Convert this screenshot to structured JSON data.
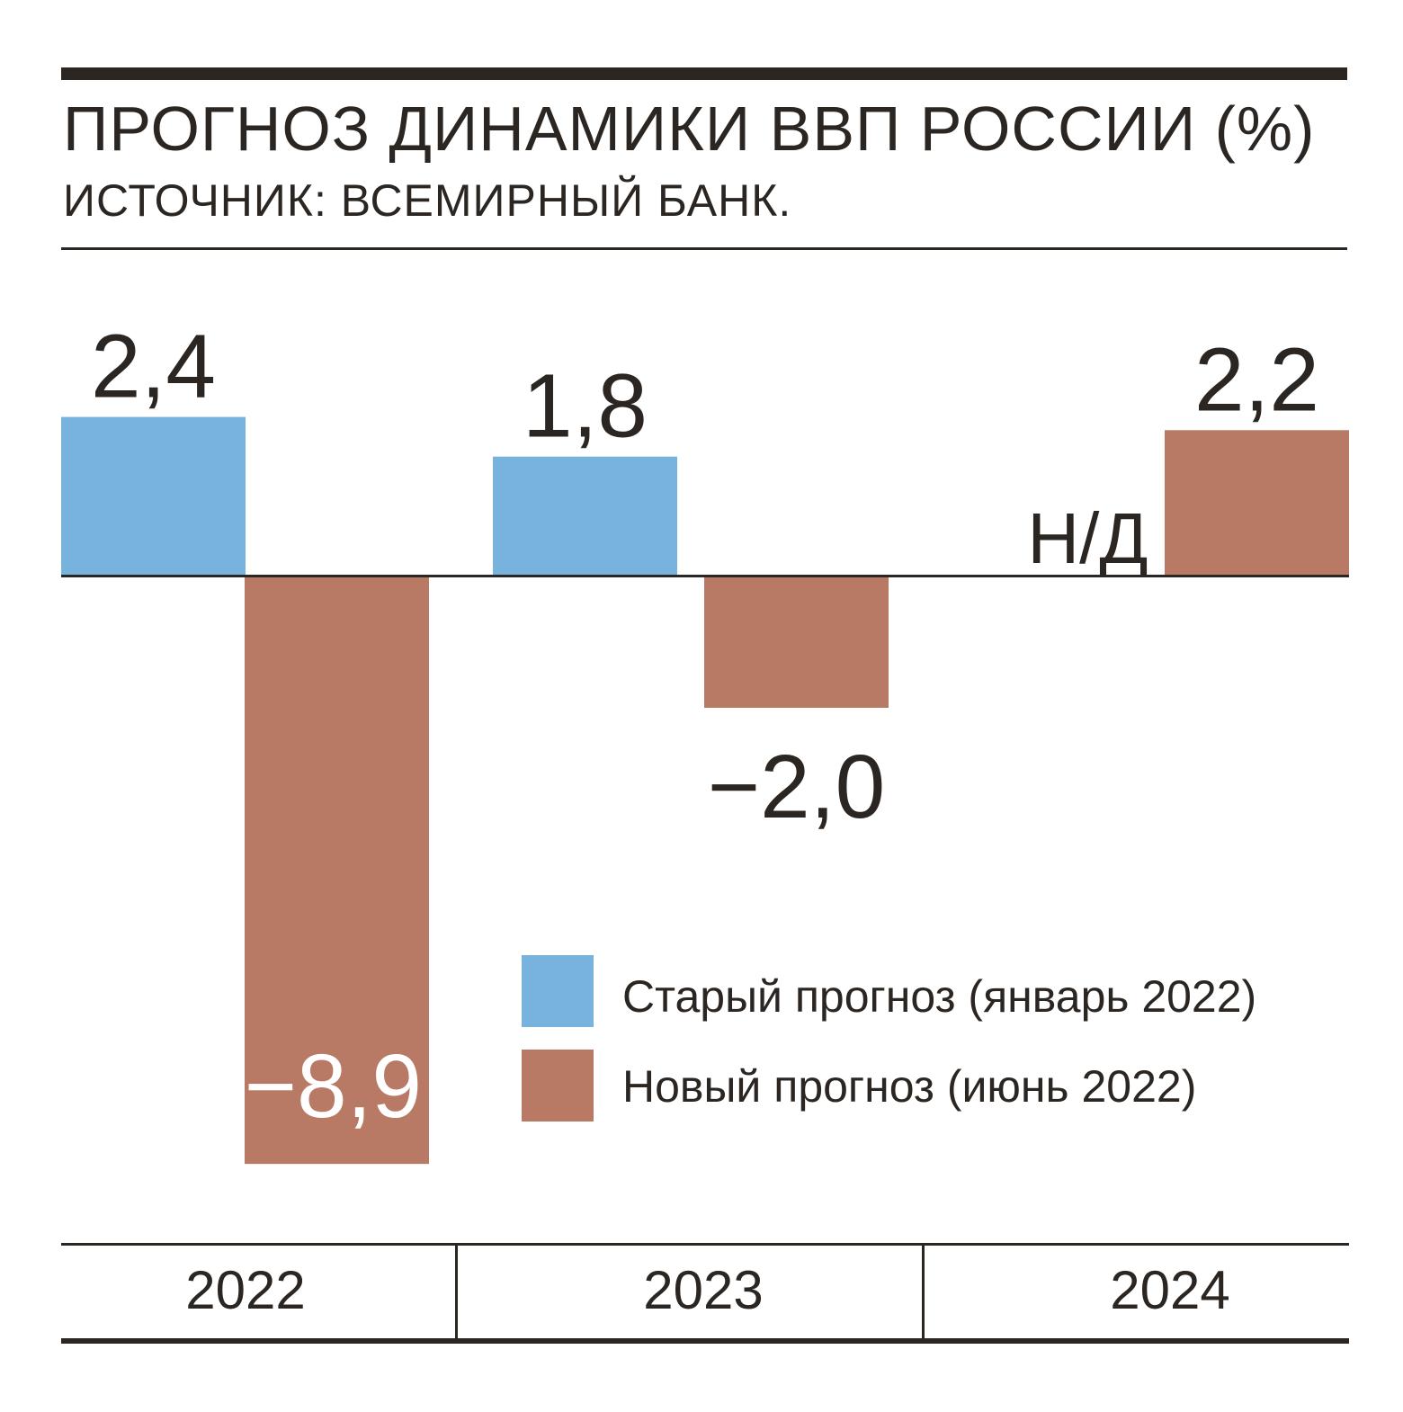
{
  "title": "ПРОГНОЗ ДИНАМИКИ ВВП РОССИИ (%)",
  "subtitle": "ИСТОЧНИК: ВСЕМИРНЫЙ БАНК.",
  "colors": {
    "old": "#78b3de",
    "new": "#b97a65",
    "ink": "#2b2622",
    "inverse_label": "#ffffff"
  },
  "legend": {
    "old_label": "Старый прогноз (январь 2022)",
    "new_label": "Новый прогноз (июнь 2022)"
  },
  "chart_data": {
    "type": "bar",
    "title": "ПРОГНОЗ ДИНАМИКИ ВВП РОССИИ (%)",
    "categories": [
      "2022",
      "2023",
      "2024"
    ],
    "series": [
      {
        "name": "Старый прогноз (январь 2022)",
        "values": [
          2.4,
          1.8,
          null
        ],
        "labels": [
          "2,4",
          "1,8",
          "Н/Д"
        ]
      },
      {
        "name": "Новый прогноз (июнь 2022)",
        "values": [
          -8.9,
          -2.0,
          2.2
        ],
        "labels": [
          "−8,9",
          "−2,0",
          "2,2"
        ]
      }
    ],
    "ylim": [
      -8.9,
      2.4
    ],
    "legend_position": "bottom-right",
    "grid": false
  }
}
